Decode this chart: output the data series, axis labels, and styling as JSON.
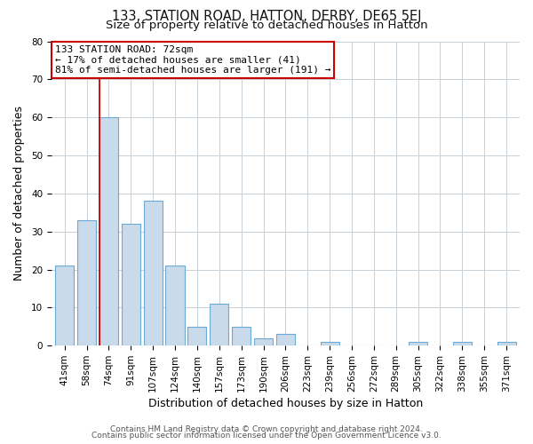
{
  "title": "133, STATION ROAD, HATTON, DERBY, DE65 5EJ",
  "subtitle": "Size of property relative to detached houses in Hatton",
  "xlabel": "Distribution of detached houses by size in Hatton",
  "ylabel": "Number of detached properties",
  "bar_labels": [
    "41sqm",
    "58sqm",
    "74sqm",
    "91sqm",
    "107sqm",
    "124sqm",
    "140sqm",
    "157sqm",
    "173sqm",
    "190sqm",
    "206sqm",
    "223sqm",
    "239sqm",
    "256sqm",
    "272sqm",
    "289sqm",
    "305sqm",
    "322sqm",
    "338sqm",
    "355sqm",
    "371sqm"
  ],
  "bar_values": [
    21,
    33,
    60,
    32,
    38,
    21,
    5,
    11,
    5,
    2,
    3,
    0,
    1,
    0,
    0,
    0,
    1,
    0,
    1,
    0,
    1
  ],
  "bar_color": "#c9daea",
  "bar_edge_color": "#6aaad4",
  "ylim": [
    0,
    80
  ],
  "yticks": [
    0,
    10,
    20,
    30,
    40,
    50,
    60,
    70,
    80
  ],
  "vline_x_index": 2,
  "vline_color": "#cc0000",
  "annotation_title": "133 STATION ROAD: 72sqm",
  "annotation_line1": "← 17% of detached houses are smaller (41)",
  "annotation_line2": "81% of semi-detached houses are larger (191) →",
  "annotation_box_edge": "#cc0000",
  "footer1": "Contains HM Land Registry data © Crown copyright and database right 2024.",
  "footer2": "Contains public sector information licensed under the Open Government Licence v3.0.",
  "background_color": "#ffffff",
  "plot_background": "#ffffff",
  "grid_color": "#c8d0d8",
  "title_fontsize": 10.5,
  "subtitle_fontsize": 9.5,
  "axis_label_fontsize": 9,
  "tick_fontsize": 7.5,
  "footer_fontsize": 6.5
}
